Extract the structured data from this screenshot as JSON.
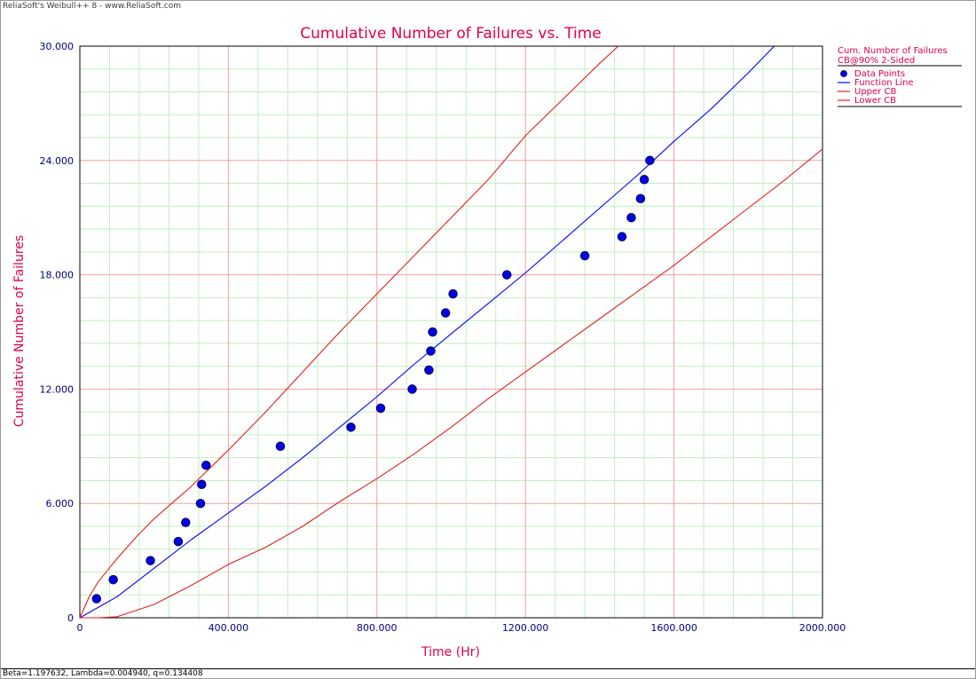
{
  "header": {
    "watermark": "ReliaSoft's Weibull++ 8 - www.ReliaSoft.com"
  },
  "footer": {
    "parameters": "Beta=1.197632, Lambda=0.004940, q=0.134408"
  },
  "colors": {
    "title": "#e0004a",
    "axis_text": "#000080",
    "major_grid": "#f2a0a0",
    "minor_grid": "#bff0bf",
    "function_line": "#0000ff",
    "bounds": "#e02020",
    "points_fill": "#0000e0",
    "points_stroke": "#000050"
  },
  "chart_data": {
    "type": "scatter",
    "title": "Cumulative Number of Failures vs. Time",
    "xlabel": "Time (Hr)",
    "ylabel": "Cumulative Number of Failures",
    "xlim": [
      0,
      2000
    ],
    "ylim": [
      0,
      30
    ],
    "x_ticks": [
      0,
      400,
      800,
      1200,
      1600,
      2000
    ],
    "x_tick_labels": [
      "0",
      "400.000",
      "800.000",
      "1200.000",
      "1600.000",
      "2000.000"
    ],
    "y_ticks": [
      0,
      6,
      12,
      18,
      24,
      30
    ],
    "y_tick_labels": [
      "0",
      "6.000",
      "12.000",
      "18.000",
      "24.000",
      "30.000"
    ],
    "grid": true,
    "legend": {
      "position": "right",
      "title": "Cum. Number of Failures",
      "subtitle": "CB@90% 2-Sided",
      "entries": [
        "Data Points",
        "Function Line",
        "Upper CB",
        "Lower CB"
      ]
    },
    "series": [
      {
        "name": "Data Points",
        "kind": "points",
        "x": [
          45,
          90,
          190,
          265,
          285,
          325,
          328,
          340,
          540,
          730,
          810,
          895,
          940,
          945,
          950,
          985,
          1005,
          1150,
          1360,
          1460,
          1485,
          1510,
          1520,
          1535
        ],
        "y": [
          1,
          2,
          3,
          4,
          5,
          6,
          7,
          8,
          9,
          10,
          11,
          12,
          13,
          14,
          15,
          16,
          17,
          18,
          19,
          20,
          21,
          22,
          23,
          24
        ]
      },
      {
        "name": "Function Line",
        "kind": "line",
        "x": [
          0,
          100,
          200,
          300,
          400,
          500,
          600,
          700,
          800,
          900,
          1000,
          1100,
          1200,
          1300,
          1400,
          1500,
          1600,
          1700,
          1800,
          1870
        ],
        "y": [
          0,
          1.1,
          2.6,
          4.1,
          5.5,
          6.9,
          8.4,
          10.0,
          11.6,
          13.3,
          14.9,
          16.5,
          18.1,
          19.8,
          21.5,
          23.2,
          25.0,
          26.7,
          28.6,
          30.0
        ]
      },
      {
        "name": "Upper CB",
        "kind": "line",
        "x": [
          0,
          25,
          50,
          100,
          150,
          200,
          300,
          400,
          500,
          600,
          700,
          800,
          900,
          1000,
          1100,
          1200,
          1300,
          1400,
          1450
        ],
        "y": [
          0,
          1.1,
          1.9,
          3.1,
          4.2,
          5.2,
          6.9,
          8.8,
          10.8,
          12.9,
          15.0,
          17.0,
          19.0,
          21.0,
          23.0,
          25.3,
          27.2,
          29.1,
          30.0
        ]
      },
      {
        "name": "Lower CB",
        "kind": "line",
        "x": [
          0,
          50,
          100,
          200,
          300,
          400,
          500,
          600,
          700,
          800,
          900,
          1000,
          1100,
          1200,
          1300,
          1400,
          1500,
          1600,
          1700,
          1800,
          1900,
          2000
        ],
        "y": [
          0,
          0,
          0.05,
          0.7,
          1.7,
          2.8,
          3.7,
          4.8,
          6.1,
          7.3,
          8.6,
          10.0,
          11.5,
          12.9,
          14.3,
          15.7,
          17.1,
          18.5,
          20.0,
          21.5,
          23.0,
          24.6
        ]
      }
    ]
  }
}
